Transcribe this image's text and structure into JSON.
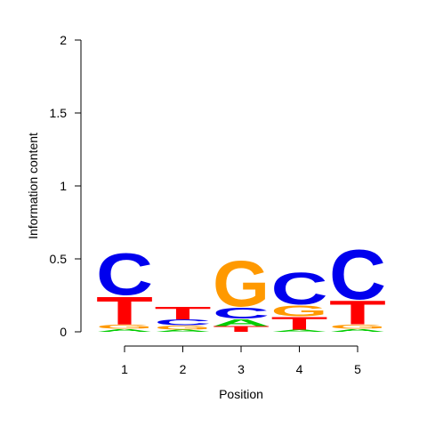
{
  "chart_data": {
    "type": "sequence-logo",
    "xlabel": "Position",
    "ylabel": "Information content",
    "ylim": [
      0,
      2
    ],
    "y_ticks": [
      "0",
      "0.5",
      "1",
      "1.5",
      "2"
    ],
    "y_tick_values": [
      0,
      0.5,
      1,
      1.5,
      2
    ],
    "positions": [
      "1",
      "2",
      "3",
      "4",
      "5"
    ],
    "colors": {
      "A": "#00cc00",
      "C": "#0000ee",
      "G": "#ff9900",
      "T": "#ff0000"
    },
    "stacks": [
      {
        "position": "1",
        "letters": [
          {
            "letter": "A",
            "height": 0.02
          },
          {
            "letter": "G",
            "height": 0.03
          },
          {
            "letter": "T",
            "height": 0.2
          },
          {
            "letter": "C",
            "height": 0.3
          }
        ]
      },
      {
        "position": "2",
        "letters": [
          {
            "letter": "A",
            "height": 0.015
          },
          {
            "letter": "G",
            "height": 0.03
          },
          {
            "letter": "C",
            "height": 0.04
          },
          {
            "letter": "T",
            "height": 0.09
          }
        ]
      },
      {
        "position": "3",
        "letters": [
          {
            "letter": "T",
            "height": 0.04
          },
          {
            "letter": "A",
            "height": 0.05
          },
          {
            "letter": "C",
            "height": 0.08
          },
          {
            "letter": "G",
            "height": 0.33
          }
        ]
      },
      {
        "position": "4",
        "letters": [
          {
            "letter": "A",
            "height": 0.015
          },
          {
            "letter": "T",
            "height": 0.09
          },
          {
            "letter": "G",
            "height": 0.08
          },
          {
            "letter": "C",
            "height": 0.23
          }
        ]
      },
      {
        "position": "5",
        "letters": [
          {
            "letter": "A",
            "height": 0.02
          },
          {
            "letter": "G",
            "height": 0.03
          },
          {
            "letter": "T",
            "height": 0.17
          },
          {
            "letter": "C",
            "height": 0.36
          }
        ]
      }
    ]
  }
}
